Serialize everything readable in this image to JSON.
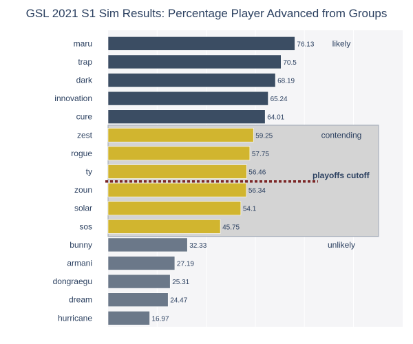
{
  "chart_data": {
    "type": "bar",
    "orientation": "horizontal",
    "title": "GSL 2021 S1 Sim Results: Percentage Player Advanced from Groups",
    "xlabel": "",
    "ylabel": "",
    "xlim": [
      0,
      100
    ],
    "grid": true,
    "categories": [
      "maru",
      "trap",
      "dark",
      "innovation",
      "cure",
      "zest",
      "rogue",
      "ty",
      "zoun",
      "solar",
      "sos",
      "bunny",
      "armani",
      "dongraegu",
      "dream",
      "hurricane"
    ],
    "values": [
      76.13,
      70.5,
      68.19,
      65.24,
      64.01,
      59.25,
      57.75,
      56.46,
      56.34,
      54.1,
      45.75,
      32.33,
      27.19,
      25.31,
      24.47,
      16.97
    ],
    "data_labels": [
      "76.13",
      "70.5",
      "68.19",
      "65.24",
      "64.01",
      "59.25",
      "57.75",
      "56.46",
      "56.34",
      "54.1",
      "45.75",
      "32.33",
      "27.19",
      "25.31",
      "24.47",
      "16.97"
    ],
    "groups": [
      {
        "label": "likely",
        "members": [
          "maru",
          "trap",
          "dark",
          "innovation",
          "cure"
        ],
        "color": "#3b4d63"
      },
      {
        "label": "contending",
        "members": [
          "zest",
          "rogue",
          "ty",
          "zoun",
          "solar",
          "sos"
        ],
        "color": "#d1b52f"
      },
      {
        "label": "unlikely",
        "members": [
          "bunny",
          "armani",
          "dongraegu",
          "dream",
          "hurricane"
        ],
        "color": "#6b7889"
      }
    ],
    "annotations": {
      "cutoff_label": "playoffs cutoff",
      "cutoff_after": "ty",
      "cutoff_color": "#7b2626",
      "contending_box_color": "#d4d4d4"
    },
    "plot_background": "#f5f5f7",
    "gridline_color": "#ffffff"
  }
}
